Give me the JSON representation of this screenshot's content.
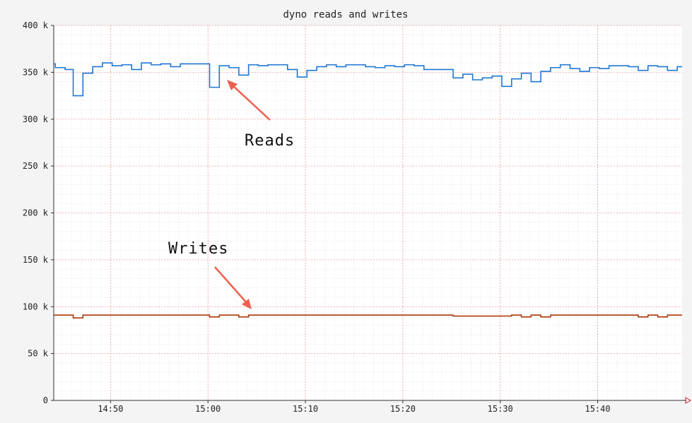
{
  "chart_data": {
    "type": "line",
    "title": "dyno reads and writes",
    "xlabel": "",
    "ylabel": "",
    "x_tick_labels": [
      "14:50",
      "15:00",
      "15:10",
      "15:20",
      "15:30",
      "15:40"
    ],
    "y_tick_labels": [
      "0",
      "50 k",
      "100 k",
      "150 k",
      "200 k",
      "250 k",
      "300 k",
      "350 k",
      "400 k"
    ],
    "ylim": [
      0,
      400000
    ],
    "xlim": [
      "14:44:10",
      "15:48:40"
    ],
    "grid": true,
    "step": true,
    "annotations": [
      {
        "text": "Reads",
        "series": "reads"
      },
      {
        "text": "Writes",
        "series": "writes"
      }
    ],
    "series": [
      {
        "key": "reads",
        "color": "#1f77d4",
        "points": [
          [
            "14:44:10",
            359000
          ],
          [
            "14:44:20",
            355000
          ],
          [
            "14:45:20",
            353000
          ],
          [
            "14:46:10",
            325000
          ],
          [
            "14:47:10",
            349000
          ],
          [
            "14:48:10",
            356000
          ],
          [
            "14:49:10",
            360000
          ],
          [
            "14:50:10",
            357000
          ],
          [
            "14:51:10",
            358000
          ],
          [
            "14:52:10",
            353000
          ],
          [
            "14:53:10",
            360000
          ],
          [
            "14:54:10",
            358000
          ],
          [
            "14:55:10",
            359000
          ],
          [
            "14:56:10",
            356000
          ],
          [
            "14:57:10",
            359000
          ],
          [
            "14:59:10",
            359000
          ],
          [
            "15:00:10",
            334000
          ],
          [
            "15:01:10",
            357000
          ],
          [
            "15:02:10",
            355000
          ],
          [
            "15:03:10",
            347000
          ],
          [
            "15:04:10",
            358000
          ],
          [
            "15:05:10",
            357000
          ],
          [
            "15:06:10",
            358000
          ],
          [
            "15:07:10",
            358000
          ],
          [
            "15:08:10",
            353000
          ],
          [
            "15:09:10",
            345000
          ],
          [
            "15:10:10",
            352000
          ],
          [
            "15:11:10",
            356000
          ],
          [
            "15:12:10",
            358000
          ],
          [
            "15:13:10",
            356000
          ],
          [
            "15:14:10",
            358000
          ],
          [
            "15:16:10",
            356000
          ],
          [
            "15:17:10",
            355000
          ],
          [
            "15:18:10",
            357000
          ],
          [
            "15:19:10",
            356000
          ],
          [
            "15:20:10",
            358000
          ],
          [
            "15:21:10",
            357000
          ],
          [
            "15:22:10",
            353000
          ],
          [
            "15:25:10",
            344000
          ],
          [
            "15:26:10",
            348000
          ],
          [
            "15:27:10",
            342000
          ],
          [
            "15:28:10",
            344000
          ],
          [
            "15:29:10",
            346000
          ],
          [
            "15:30:10",
            335000
          ],
          [
            "15:31:10",
            343000
          ],
          [
            "15:32:10",
            349000
          ],
          [
            "15:33:10",
            340000
          ],
          [
            "15:34:10",
            351000
          ],
          [
            "15:35:10",
            355000
          ],
          [
            "15:36:10",
            358000
          ],
          [
            "15:37:10",
            354000
          ],
          [
            "15:38:10",
            351000
          ],
          [
            "15:39:10",
            355000
          ],
          [
            "15:40:10",
            354000
          ],
          [
            "15:41:10",
            357000
          ],
          [
            "15:43:10",
            356000
          ],
          [
            "15:44:10",
            352000
          ],
          [
            "15:45:10",
            357000
          ],
          [
            "15:46:10",
            356000
          ],
          [
            "15:47:10",
            352000
          ],
          [
            "15:48:10",
            356000
          ],
          [
            "15:48:40",
            356000
          ]
        ]
      },
      {
        "key": "writes",
        "color": "#b03a0a",
        "points": [
          [
            "14:44:10",
            91000
          ],
          [
            "14:46:10",
            88000
          ],
          [
            "14:47:10",
            91000
          ],
          [
            "15:00:10",
            89000
          ],
          [
            "15:01:10",
            91000
          ],
          [
            "15:03:10",
            89000
          ],
          [
            "15:04:10",
            91000
          ],
          [
            "15:25:10",
            90000
          ],
          [
            "15:31:10",
            91000
          ],
          [
            "15:32:10",
            89000
          ],
          [
            "15:33:10",
            91000
          ],
          [
            "15:34:10",
            89000
          ],
          [
            "15:35:10",
            91000
          ],
          [
            "15:44:10",
            89000
          ],
          [
            "15:45:10",
            91000
          ],
          [
            "15:46:10",
            89000
          ],
          [
            "15:47:10",
            91000
          ],
          [
            "15:48:40",
            91000
          ]
        ]
      }
    ],
    "colors": {
      "background": "#f4f4f4",
      "plot_background": "#ffffff",
      "minor_grid": "#d8d8d8",
      "major_grid": "#f0a0a0",
      "axis": "#333333",
      "arrow": "#ee5f50"
    }
  }
}
